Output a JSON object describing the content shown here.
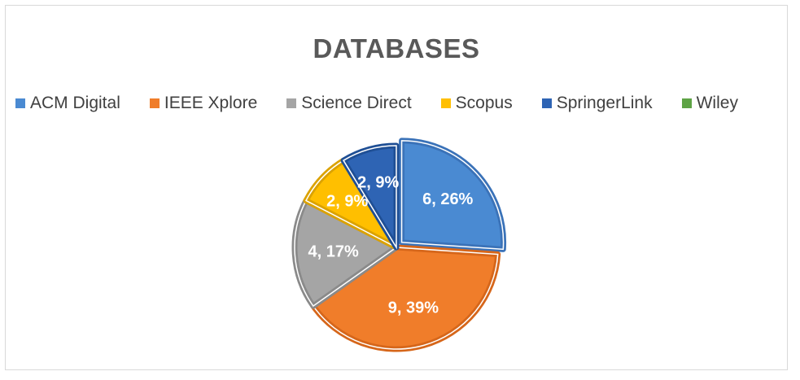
{
  "chart_data": {
    "type": "pie",
    "title": "DATABASES",
    "legend_position": "top",
    "categories": [
      "ACM Digital",
      "IEEE Xplore",
      "Science Direct",
      "Scopus",
      "SpringerLink",
      "Wiley"
    ],
    "values": [
      6,
      9,
      4,
      2,
      2,
      0
    ],
    "percent_labels": [
      "26%",
      "39%",
      "17%",
      "9%",
      "9%",
      "0%"
    ],
    "data_labels": [
      "6, 26%",
      "9, 39%",
      "4, 17%",
      "2, 9%",
      "2, 9%",
      ""
    ],
    "colors": [
      "#4a8ad2",
      "#f07d2a",
      "#a5a5a5",
      "#ffbf00",
      "#2e64b4",
      "#5ea345"
    ],
    "edge_colors": [
      "#3a72b8",
      "#d6661a",
      "#8a8a8a",
      "#dba200",
      "#1f4f95",
      "#4a8a36"
    ]
  }
}
